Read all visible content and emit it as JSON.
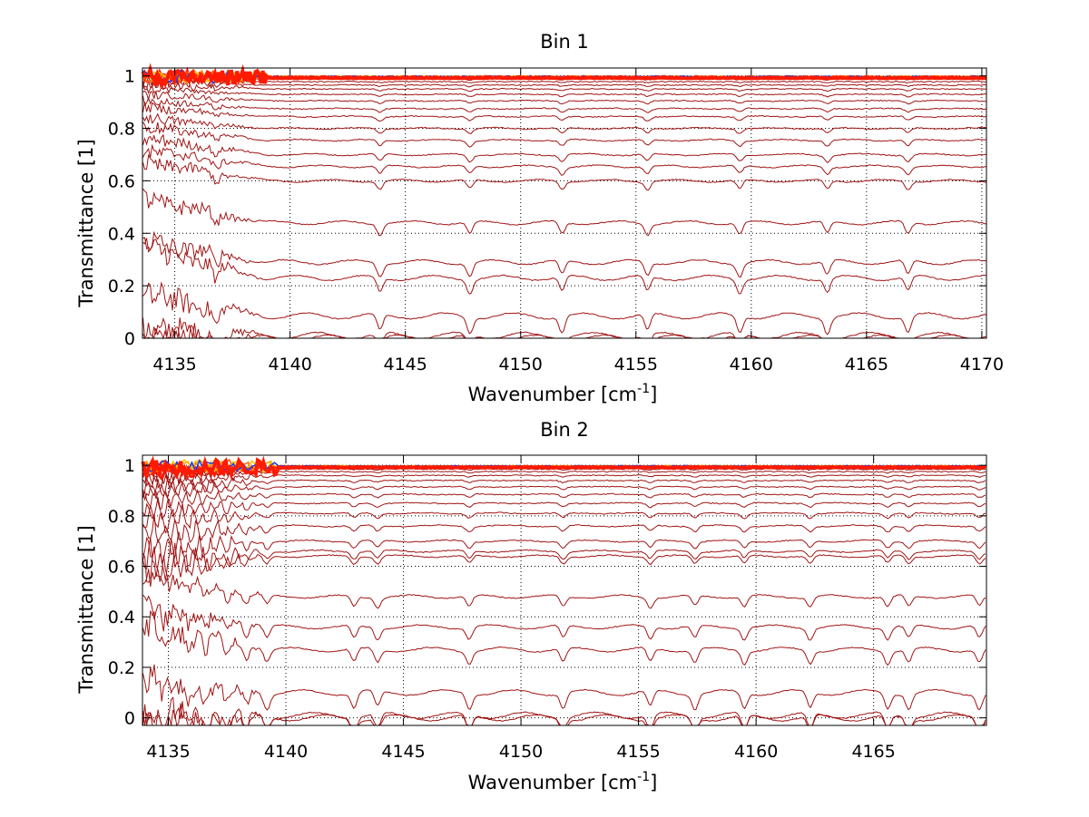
{
  "chart_data": [
    {
      "type": "line",
      "title": "Bin 1",
      "xlabel": "Wavenumber [cm",
      "xlabel_sup": "-1",
      "xlabel_close": "]",
      "ylabel": "Transmittance [1]",
      "xlim": [
        4133.6,
        4170.2
      ],
      "ylim": [
        0,
        1.03
      ],
      "xticks": [
        4135,
        4140,
        4145,
        4150,
        4155,
        4160,
        4165,
        4170
      ],
      "yticks": [
        0,
        0.2,
        0.4,
        0.6,
        0.8,
        1
      ],
      "ytick_labels": [
        "0",
        "0.2",
        "0.4",
        "0.6",
        "0.8",
        "1"
      ],
      "grid": true,
      "noise_region_end": 4139,
      "absorption_lines": [
        4136.8,
        4143.9,
        4147.8,
        4151.8,
        4155.5,
        4159.5,
        4163.3,
        4166.8
      ],
      "series_levels": [
        0.0,
        0.01,
        0.085,
        0.23,
        0.29,
        0.44,
        0.6,
        0.655,
        0.7,
        0.755,
        0.8,
        0.845,
        0.875,
        0.905,
        0.93,
        0.95,
        0.965,
        0.978,
        0.988,
        0.996
      ],
      "start_bump": [
        0.0,
        0.015,
        0.075,
        0.11,
        0.08,
        0.09,
        0.07,
        0.06,
        0.06,
        0.05,
        0.04,
        0.035,
        0.03,
        0.025,
        0.02,
        0.02,
        0.015,
        0.015,
        0.01,
        0.01
      ],
      "series_color": "#a01414",
      "top_colors": [
        "#ff1a00",
        "#ff5a00",
        "#ff9a00",
        "#ffc400",
        "#1040ff"
      ]
    },
    {
      "type": "line",
      "title": "Bin 2",
      "xlabel": "Wavenumber [cm",
      "xlabel_sup": "-1",
      "xlabel_close": "]",
      "ylabel": "Transmittance [1]",
      "xlim": [
        4133.9,
        4169.8
      ],
      "ylim": [
        -0.03,
        1.04
      ],
      "xticks": [
        4135,
        4140,
        4145,
        4150,
        4155,
        4160,
        4165
      ],
      "yticks": [
        0,
        0.2,
        0.4,
        0.6,
        0.8,
        1
      ],
      "ytick_labels": [
        "0",
        "0.2",
        "0.4",
        "0.6",
        "0.8",
        "1"
      ],
      "grid": true,
      "noise_region_end": 4139.6,
      "absorption_lines": [
        4134.8,
        4135.9,
        4136.6,
        4137.5,
        4138.3,
        4139.2,
        4142.9,
        4143.9,
        4147.8,
        4151.8,
        4155.5,
        4157.4,
        4159.5,
        4162.3,
        4165.6,
        4166.5,
        4169.5
      ],
      "series_levels": [
        0.0,
        0.01,
        0.1,
        0.27,
        0.36,
        0.48,
        0.64,
        0.66,
        0.7,
        0.76,
        0.81,
        0.85,
        0.885,
        0.915,
        0.94,
        0.96,
        0.975,
        0.985,
        0.993
      ],
      "start_bump": [
        0.0,
        0.01,
        0.05,
        0.1,
        0.08,
        0.08,
        0.05,
        0.05,
        0.05,
        0.04,
        0.04,
        0.03,
        0.03,
        0.03,
        0.02,
        0.02,
        0.015,
        0.01,
        0.01
      ],
      "series_color": "#a01414",
      "top_colors": [
        "#ff1a00",
        "#ff5a00",
        "#ff9a00",
        "#ffc400",
        "#1040ff"
      ]
    }
  ]
}
